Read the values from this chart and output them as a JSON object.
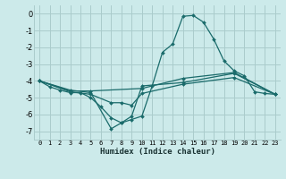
{
  "xlabel": "Humidex (Indice chaleur)",
  "bg_color": "#cceaea",
  "grid_color": "#aacccc",
  "line_color": "#1a6b6b",
  "xlim": [
    -0.5,
    23.5
  ],
  "ylim": [
    -7.5,
    0.5
  ],
  "yticks": [
    0,
    -1,
    -2,
    -3,
    -4,
    -5,
    -6,
    -7
  ],
  "xticks": [
    0,
    1,
    2,
    3,
    4,
    5,
    6,
    7,
    8,
    9,
    10,
    11,
    12,
    13,
    14,
    15,
    16,
    17,
    18,
    19,
    20,
    21,
    22,
    23
  ],
  "lines": [
    {
      "x": [
        0,
        1,
        2,
        3,
        4,
        5,
        6,
        7,
        8,
        9,
        10,
        11,
        12,
        13,
        14,
        15,
        16,
        17,
        18,
        19,
        20,
        21,
        22,
        23
      ],
      "y": [
        -4.0,
        -4.35,
        -4.55,
        -4.7,
        -4.7,
        -5.0,
        -5.55,
        -6.2,
        -6.5,
        -6.3,
        -6.1,
        -4.3,
        -2.3,
        -1.8,
        -0.15,
        -0.1,
        -0.5,
        -1.5,
        -2.8,
        -3.4,
        -3.7,
        -4.65,
        -4.75,
        -4.8
      ]
    },
    {
      "x": [
        0,
        3,
        5,
        7,
        8,
        9,
        10,
        14,
        19,
        23
      ],
      "y": [
        -4.0,
        -4.55,
        -4.7,
        -6.85,
        -6.5,
        -6.1,
        -4.3,
        -4.1,
        -3.55,
        -4.8
      ]
    },
    {
      "x": [
        0,
        3,
        5,
        7,
        8,
        9,
        10,
        14,
        19,
        23
      ],
      "y": [
        -4.0,
        -4.65,
        -4.8,
        -5.3,
        -5.3,
        -5.45,
        -4.75,
        -4.2,
        -3.8,
        -4.8
      ]
    },
    {
      "x": [
        0,
        3,
        5,
        10,
        14,
        19,
        23
      ],
      "y": [
        -4.0,
        -4.6,
        -4.6,
        -4.45,
        -3.85,
        -3.5,
        -4.8
      ]
    }
  ]
}
